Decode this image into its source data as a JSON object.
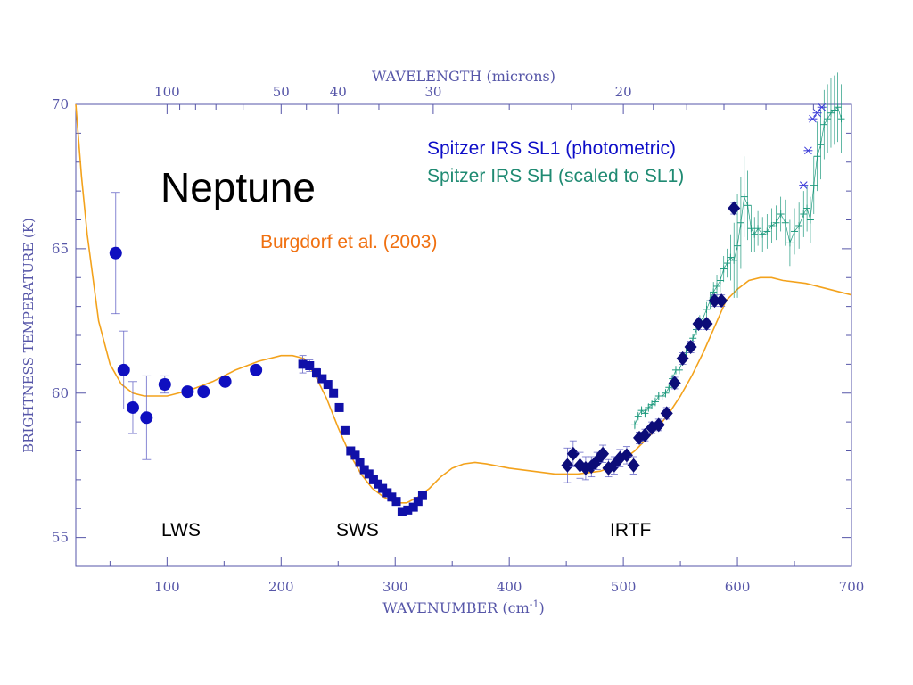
{
  "chart_data": {
    "type": "scatter",
    "title": "Neptune",
    "xlabel": "WAVENUMBER (cm",
    "xlabel_sup": "-1",
    "xlabel_end": ")",
    "ylabel": "BRIGHTNESS TEMPERATURE (K)",
    "top_label": "WAVELENGTH (microns)",
    "xlim": [
      20,
      700
    ],
    "ylim": [
      54,
      70
    ],
    "x_ticks": [
      100,
      200,
      300,
      400,
      500,
      600,
      700
    ],
    "y_ticks": [
      55,
      60,
      65,
      70
    ],
    "top_ticks": [
      100,
      50,
      40,
      30,
      20
    ],
    "legend": {
      "sl1": "Spitzer IRS SL1 (photometric)",
      "sh": "Spitzer IRS SH (scaled to SL1)",
      "model": "Burgdorf et al. (2003)"
    },
    "annotations": [
      "LWS",
      "SWS",
      "IRTF"
    ],
    "colors": {
      "axis": "#5656a8",
      "lws": "#0f0fc0",
      "sws": "#1010a8",
      "irtf": "#0c0c78",
      "sh": "#1f9a7e",
      "model": "#f3a21c",
      "model_label": "#f07010",
      "sl1_label": "#0e0ec8",
      "sh_label": "#1f8a72"
    },
    "model_curve": {
      "name": "Burgdorf et al. (2003)",
      "x": [
        20,
        25,
        30,
        40,
        50,
        60,
        70,
        80,
        90,
        100,
        120,
        140,
        160,
        180,
        200,
        210,
        220,
        230,
        240,
        250,
        260,
        270,
        280,
        290,
        300,
        310,
        320,
        330,
        340,
        350,
        360,
        370,
        380,
        400,
        420,
        440,
        460,
        480,
        490,
        500,
        510,
        520,
        530,
        540,
        550,
        560,
        570,
        580,
        590,
        600,
        610,
        620,
        630,
        640,
        660,
        680,
        700
      ],
      "y": [
        70,
        67.5,
        65.5,
        62.5,
        61.0,
        60.3,
        60.0,
        59.9,
        59.9,
        59.9,
        60.1,
        60.4,
        60.8,
        61.1,
        61.3,
        61.3,
        61.2,
        60.6,
        59.8,
        58.8,
        57.9,
        57.2,
        56.7,
        56.4,
        56.2,
        56.2,
        56.4,
        56.7,
        57.1,
        57.4,
        57.55,
        57.6,
        57.55,
        57.4,
        57.3,
        57.2,
        57.2,
        57.3,
        57.45,
        57.7,
        58.0,
        58.4,
        58.8,
        59.3,
        59.9,
        60.6,
        61.4,
        62.3,
        63.2,
        63.6,
        63.9,
        64.0,
        64.0,
        63.9,
        63.8,
        63.6,
        63.4
      ]
    },
    "series": [
      {
        "name": "LWS",
        "marker": "circle",
        "x": [
          55,
          62,
          70,
          82,
          98,
          118,
          132,
          151,
          178
        ],
        "y": [
          64.85,
          60.8,
          59.5,
          59.15,
          60.3,
          60.05,
          60.05,
          60.4,
          60.8
        ],
        "err": [
          2.1,
          1.35,
          0.9,
          1.45,
          0.3,
          0.1,
          0.1,
          0.1,
          0.1
        ]
      },
      {
        "name": "SWS",
        "marker": "square",
        "x": [
          219,
          225,
          231,
          236,
          241,
          246,
          251,
          256,
          261,
          265,
          269,
          273,
          277,
          281,
          285,
          289,
          293,
          297,
          301,
          306,
          311,
          316,
          320,
          324
        ],
        "y": [
          61.0,
          60.95,
          60.7,
          60.5,
          60.3,
          60.0,
          59.5,
          58.7,
          58.0,
          57.85,
          57.6,
          57.35,
          57.2,
          57.0,
          56.85,
          56.7,
          56.55,
          56.4,
          56.25,
          55.9,
          55.95,
          56.05,
          56.25,
          56.45
        ],
        "err": [
          0.3,
          0.2,
          0.15,
          0.1,
          0.1,
          0.1,
          0.1,
          0.1,
          0.1,
          0.1,
          0.1,
          0.1,
          0.1,
          0.1,
          0.1,
          0.1,
          0.1,
          0.1,
          0.1,
          0.1,
          0.1,
          0.1,
          0.1,
          0.1
        ]
      },
      {
        "name": "IRTF",
        "marker": "diamond",
        "x": [
          451,
          456,
          462,
          467,
          472,
          477,
          482,
          487,
          492,
          497,
          503,
          509,
          514,
          519,
          525,
          531,
          538,
          545,
          552,
          559,
          566,
          573,
          580,
          586,
          597
        ],
        "y": [
          57.5,
          57.9,
          57.5,
          57.4,
          57.45,
          57.65,
          57.9,
          57.4,
          57.5,
          57.75,
          57.85,
          57.5,
          58.45,
          58.55,
          58.8,
          58.9,
          59.3,
          60.35,
          61.2,
          61.6,
          62.4,
          62.4,
          63.2,
          63.2,
          66.4
        ],
        "err": [
          0.6,
          0.45,
          0.45,
          0.4,
          0.35,
          0.3,
          0.3,
          0.3,
          0.3,
          0.3,
          0.3,
          0.3,
          0.2,
          0.2,
          0.2,
          0.2,
          0.2,
          0.2,
          0.2,
          0.2,
          0.2,
          0.2,
          0.2,
          0.2,
          0.2
        ]
      },
      {
        "name": "Spitzer IRS SH (scaled to SL1)",
        "marker": "plus",
        "x": [
          510,
          513,
          516,
          519,
          522,
          525,
          528,
          531,
          534,
          537,
          540,
          543,
          546,
          549,
          552,
          555,
          558,
          561,
          564,
          567,
          570,
          573,
          576,
          579,
          582,
          585,
          588,
          591,
          594,
          597,
          600,
          603,
          606,
          609,
          612,
          615,
          618,
          622,
          626,
          630,
          634,
          638,
          642,
          646,
          650,
          654,
          658,
          661,
          664,
          667,
          670,
          673,
          676,
          679,
          682,
          685,
          688,
          691
        ],
        "y": [
          58.9,
          59.2,
          59.4,
          59.3,
          59.5,
          59.6,
          59.7,
          59.9,
          59.9,
          60.0,
          60.2,
          60.5,
          60.8,
          60.8,
          61.1,
          61.4,
          61.6,
          61.9,
          62.2,
          62.5,
          62.6,
          62.9,
          63.2,
          63.5,
          63.7,
          63.9,
          64.3,
          64.5,
          64.7,
          64.6,
          65.1,
          65.9,
          66.8,
          66.5,
          65.7,
          65.5,
          65.7,
          65.5,
          65.6,
          65.8,
          65.9,
          66.2,
          65.9,
          65.2,
          65.6,
          65.8,
          66.2,
          66.4,
          66.0,
          67.2,
          68.2,
          68.6,
          69.3,
          69.5,
          69.7,
          69.8,
          69.9,
          69.5
        ],
        "err": [
          0.15,
          0.15,
          0.15,
          0.15,
          0.15,
          0.15,
          0.15,
          0.15,
          0.15,
          0.15,
          0.15,
          0.15,
          0.15,
          0.15,
          0.15,
          0.15,
          0.15,
          0.15,
          0.2,
          0.2,
          0.2,
          0.25,
          0.3,
          0.35,
          0.4,
          0.4,
          0.45,
          0.5,
          0.8,
          1.3,
          1.8,
          1.6,
          1.4,
          1.2,
          0.8,
          0.6,
          0.6,
          0.6,
          0.6,
          0.6,
          0.6,
          0.6,
          0.8,
          0.8,
          0.8,
          0.8,
          0.8,
          0.8,
          0.8,
          1.0,
          1.2,
          1.2,
          1.2,
          1.2,
          1.2,
          1.2,
          1.2,
          1.2
        ]
      },
      {
        "name": "Spitzer IRS SL1 (photometric)",
        "marker": "asterisk",
        "x": [
          658,
          662,
          666,
          670,
          674
        ],
        "y": [
          67.2,
          68.4,
          69.5,
          69.7,
          69.9
        ]
      }
    ]
  }
}
